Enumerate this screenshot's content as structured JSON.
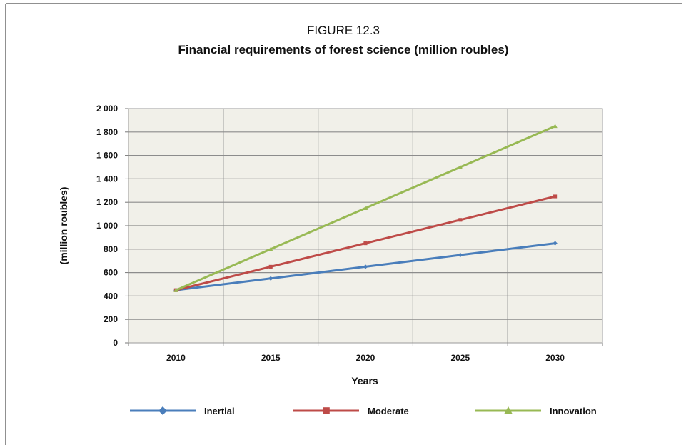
{
  "chart_data": {
    "type": "line",
    "figure_label": "FIGURE 12.3",
    "title": "Financial requirements of forest science (million roubles)",
    "xlabel": "Years",
    "ylabel": "(million roubles)",
    "x": [
      "2010",
      "2015",
      "2020",
      "2025",
      "2030"
    ],
    "ylim": [
      0,
      2000
    ],
    "yticks": [
      0,
      200,
      400,
      600,
      800,
      1000,
      1200,
      1400,
      1600,
      1800,
      2000
    ],
    "ytick_labels": [
      "0",
      "200",
      "400",
      "600",
      "800",
      "1 000",
      "1 200",
      "1 400",
      "1 600",
      "1 800",
      "2 000"
    ],
    "grid": true,
    "legend_position": "bottom",
    "series": [
      {
        "name": "Inertial",
        "values": [
          450,
          550,
          650,
          750,
          850
        ],
        "color": "#4a7ebb",
        "marker": "diamond"
      },
      {
        "name": "Moderate",
        "values": [
          450,
          650,
          850,
          1050,
          1250
        ],
        "color": "#be4b48",
        "marker": "square"
      },
      {
        "name": "Innovation",
        "values": [
          450,
          800,
          1150,
          1500,
          1850
        ],
        "color": "#98b954",
        "marker": "triangle"
      }
    ]
  }
}
